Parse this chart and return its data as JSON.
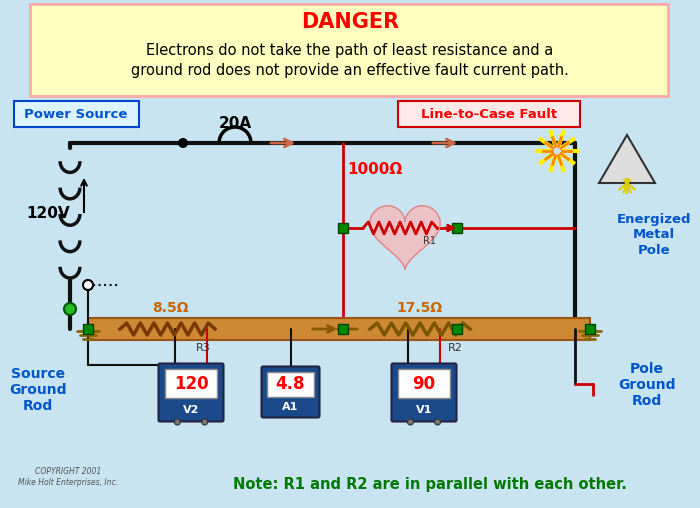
{
  "bg_color": "#c8e4f0",
  "warning_box_color": "#ffffc0",
  "warning_box_border": "#ffaaaa",
  "warning_title": "DANGER",
  "warning_title_color": "#ff0000",
  "warning_text1": "Electrons do not take the path of least resistance and a",
  "warning_text2": "ground rod does not provide an effective fault current path.",
  "warning_text_color": "#000000",
  "power_source_label": "Power Source",
  "power_source_color": "#0055cc",
  "line_to_case_fault": "Line-to-Case Fault",
  "fault_color": "#ff0000",
  "current_label": "20A",
  "voltage_label": "120V",
  "r1_label": "1000Ω",
  "r1_name": "R1",
  "r2_label": "17.5Ω",
  "r2_name": "R2",
  "r3_label": "8.5Ω",
  "r3_name": "R3",
  "v1_value": "90",
  "v1_name": "V1",
  "v2_value": "120",
  "v2_name": "V2",
  "a1_value": "4.8",
  "a1_name": "A1",
  "source_ground_label": "Source\nGround\nRod",
  "pole_ground_label": "Pole\nGround\nRod",
  "energized_metal_label": "Energized\nMetal\nPole",
  "note_text": "Note: R1 and R2 are in parallel with each other.",
  "note_color": "#007700",
  "copyright_text": "COPYRIGHT 2001\nMike Holt Enterprises, Inc.",
  "wire_black": "#111111",
  "wire_red": "#cc0000",
  "wire_green": "#006600",
  "wire_orange": "#cc6600",
  "meter_body_color": "#1a4a8a",
  "meter_value_color": "#ff0000",
  "meter_label_color": "#ffffff",
  "ground_bar_color": "#cc8833",
  "heart_color": "#ffb0b0",
  "arrow_color": "#cc6644",
  "green_connector": "#008800"
}
